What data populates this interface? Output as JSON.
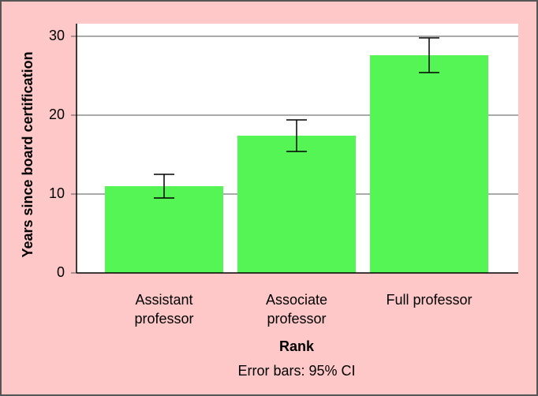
{
  "chart_data": {
    "type": "bar",
    "x_label": "Rank",
    "y_label": "Years since board certification",
    "note": "Error bars: 95% CI",
    "categories": [
      "Assistant professor",
      "Associate professor",
      "Full professor"
    ],
    "values": [
      11.0,
      17.4,
      27.6
    ],
    "errors": [
      1.5,
      2.0,
      2.2
    ],
    "color": "#55f555",
    "ylim": [
      0,
      30
    ],
    "yticks": [
      0,
      10,
      20,
      30
    ],
    "grid": true
  }
}
